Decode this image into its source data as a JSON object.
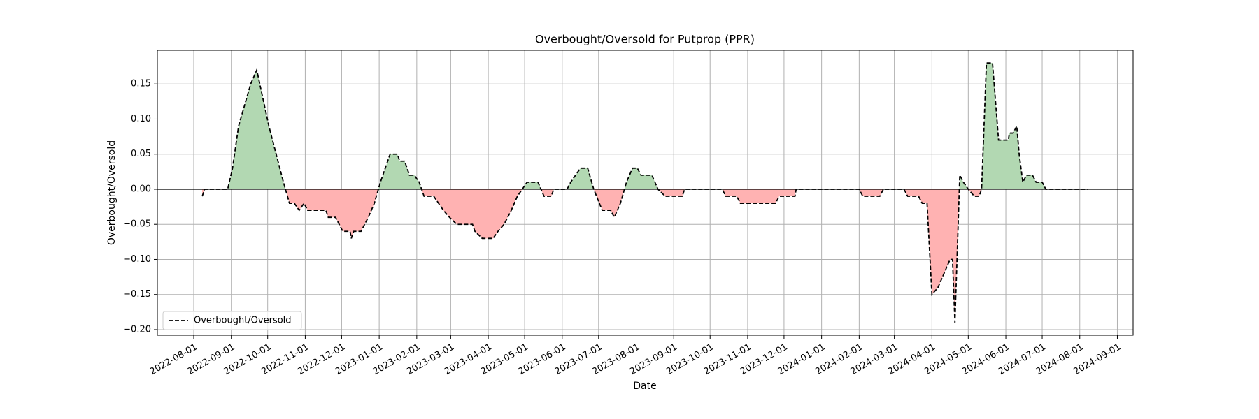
{
  "chart_data": {
    "type": "line",
    "title": "Overbought/Oversold for Putprop (PPR)",
    "xlabel": "Date",
    "ylabel": "Overbought/Oversold",
    "x": [
      "2022-08-08",
      "2022-08-10",
      "2022-08-29",
      "2022-09-02",
      "2022-09-07",
      "2022-09-12",
      "2022-09-17",
      "2022-09-22",
      "2022-09-27",
      "2022-10-02",
      "2022-10-08",
      "2022-10-14",
      "2022-10-19",
      "2022-10-23",
      "2022-10-27",
      "2022-10-31",
      "2022-11-03",
      "2022-11-18",
      "2022-11-20",
      "2022-11-26",
      "2022-12-02",
      "2022-12-08",
      "2022-12-09",
      "2022-12-11",
      "2022-12-17",
      "2022-12-23",
      "2022-12-28",
      "2023-01-02",
      "2023-01-06",
      "2023-01-10",
      "2023-01-16",
      "2023-01-18",
      "2023-01-22",
      "2023-01-26",
      "2023-01-30",
      "2023-02-03",
      "2023-02-07",
      "2023-02-15",
      "2023-02-19",
      "2023-02-23",
      "2023-02-28",
      "2023-03-06",
      "2023-03-19",
      "2023-03-21",
      "2023-03-27",
      "2023-04-05",
      "2023-04-09",
      "2023-04-14",
      "2023-04-20",
      "2023-04-25",
      "2023-04-29",
      "2023-05-03",
      "2023-05-12",
      "2023-05-17",
      "2023-05-23",
      "2023-05-25",
      "2023-06-05",
      "2023-06-08",
      "2023-06-12",
      "2023-06-16",
      "2023-06-22",
      "2023-06-27",
      "2023-07-04",
      "2023-07-11",
      "2023-07-14",
      "2023-07-19",
      "2023-07-24",
      "2023-07-29",
      "2023-08-02",
      "2023-08-05",
      "2023-08-14",
      "2023-08-19",
      "2023-08-25",
      "2023-09-08",
      "2023-09-10",
      "2023-10-11",
      "2023-10-14",
      "2023-10-23",
      "2023-10-26",
      "2023-11-24",
      "2023-11-27",
      "2023-12-10",
      "2023-12-11",
      "2024-02-01",
      "2024-02-04",
      "2024-02-18",
      "2024-02-21",
      "2024-03-09",
      "2024-03-12",
      "2024-03-21",
      "2024-03-24",
      "2024-03-28",
      "2024-04-01",
      "2024-04-06",
      "2024-04-11",
      "2024-04-16",
      "2024-04-18",
      "2024-04-20",
      "2024-04-24",
      "2024-04-27",
      "2024-05-01",
      "2024-05-06",
      "2024-05-10",
      "2024-05-12",
      "2024-05-16",
      "2024-05-21",
      "2024-05-26",
      "2024-06-03",
      "2024-06-04",
      "2024-06-07",
      "2024-06-10",
      "2024-06-12",
      "2024-06-15",
      "2024-06-18",
      "2024-06-23",
      "2024-06-26",
      "2024-07-01",
      "2024-07-04",
      "2024-08-08"
    ],
    "series": [
      {
        "name": "Overbought/Oversold",
        "color": "#000000",
        "values": [
          -0.01,
          0,
          0,
          0.03,
          0.09,
          0.12,
          0.15,
          0.17,
          0.13,
          0.09,
          0.05,
          0.01,
          -0.02,
          -0.02,
          -0.03,
          -0.02,
          -0.03,
          -0.03,
          -0.04,
          -0.04,
          -0.06,
          -0.06,
          -0.07,
          -0.06,
          -0.06,
          -0.04,
          -0.02,
          0.01,
          0.03,
          0.05,
          0.05,
          0.04,
          0.04,
          0.02,
          0.02,
          0.01,
          -0.01,
          -0.01,
          -0.02,
          -0.03,
          -0.04,
          -0.05,
          -0.05,
          -0.06,
          -0.07,
          -0.07,
          -0.06,
          -0.05,
          -0.03,
          -0.01,
          0,
          0.01,
          0.01,
          -0.01,
          -0.01,
          0,
          0,
          0.01,
          0.02,
          0.03,
          0.03,
          0,
          -0.03,
          -0.03,
          -0.04,
          -0.02,
          0.01,
          0.03,
          0.03,
          0.02,
          0.02,
          0,
          -0.01,
          -0.01,
          0,
          0,
          -0.01,
          -0.01,
          -0.02,
          -0.02,
          -0.01,
          -0.01,
          0,
          0,
          -0.01,
          -0.01,
          0,
          0,
          -0.01,
          -0.01,
          -0.02,
          -0.02,
          -0.15,
          -0.14,
          -0.12,
          -0.1,
          -0.1,
          -0.19,
          0.02,
          0.01,
          0,
          -0.01,
          -0.01,
          0,
          0.18,
          0.18,
          0.07,
          0.07,
          0.08,
          0.08,
          0.09,
          0.05,
          0.01,
          0.02,
          0.02,
          0.01,
          0.01,
          0,
          0
        ]
      }
    ],
    "fill_colors": {
      "above": "#b2d8b2",
      "below": "#ffb2b2"
    },
    "xlim": [
      "2022-07-02",
      "2024-09-14"
    ],
    "xticks": [
      "2022-08-01",
      "2022-09-01",
      "2022-10-01",
      "2022-11-01",
      "2022-12-01",
      "2023-01-01",
      "2023-02-01",
      "2023-03-01",
      "2023-04-01",
      "2023-05-01",
      "2023-06-01",
      "2023-07-01",
      "2023-08-01",
      "2023-09-01",
      "2023-10-01",
      "2023-11-01",
      "2023-12-01",
      "2024-01-01",
      "2024-02-01",
      "2024-03-01",
      "2024-04-01",
      "2024-05-01",
      "2024-06-01",
      "2024-07-01",
      "2024-08-01",
      "2024-09-01"
    ],
    "ylim": [
      -0.208,
      0.198
    ],
    "yticks": [
      {
        "value": -0.2,
        "label": "−0.20"
      },
      {
        "value": -0.15,
        "label": "−0.15"
      },
      {
        "value": -0.1,
        "label": "−0.10"
      },
      {
        "value": -0.05,
        "label": "−0.05"
      },
      {
        "value": 0,
        "label": "0.00"
      },
      0.05,
      {
        "value": 0.1,
        "label": "0.10"
      },
      0.15
    ],
    "grid": true,
    "legend": "lower left"
  }
}
